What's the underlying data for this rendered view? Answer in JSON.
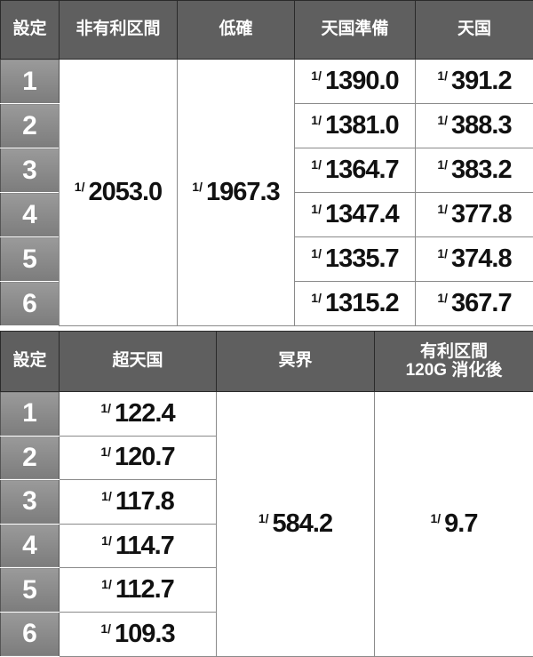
{
  "table1": {
    "headers": [
      "設定",
      "非有利区間",
      "低確",
      "天国準備",
      "天国"
    ],
    "settings": [
      "1",
      "2",
      "3",
      "4",
      "5",
      "6"
    ],
    "non_advantage": "2053.0",
    "low_prob": "1967.3",
    "heaven_prep": [
      "1390.0",
      "1381.0",
      "1364.7",
      "1347.4",
      "1335.7",
      "1315.2"
    ],
    "heaven": [
      "391.2",
      "388.3",
      "383.2",
      "377.8",
      "374.8",
      "367.7"
    ]
  },
  "table2": {
    "headers": [
      "設定",
      "超天国",
      "冥界"
    ],
    "header_advantage_line1": "有利区間",
    "header_advantage_line2": "120G 消化後",
    "settings": [
      "1",
      "2",
      "3",
      "4",
      "5",
      "6"
    ],
    "super_heaven": [
      "122.4",
      "120.7",
      "117.8",
      "114.7",
      "112.7",
      "109.3"
    ],
    "underworld": "584.2",
    "advantage_after_120g": "9.7"
  },
  "fraction_prefix": "1/",
  "colors": {
    "header_bg": "#5f5f5f",
    "setting_bg": "#8a8a8a"
  }
}
